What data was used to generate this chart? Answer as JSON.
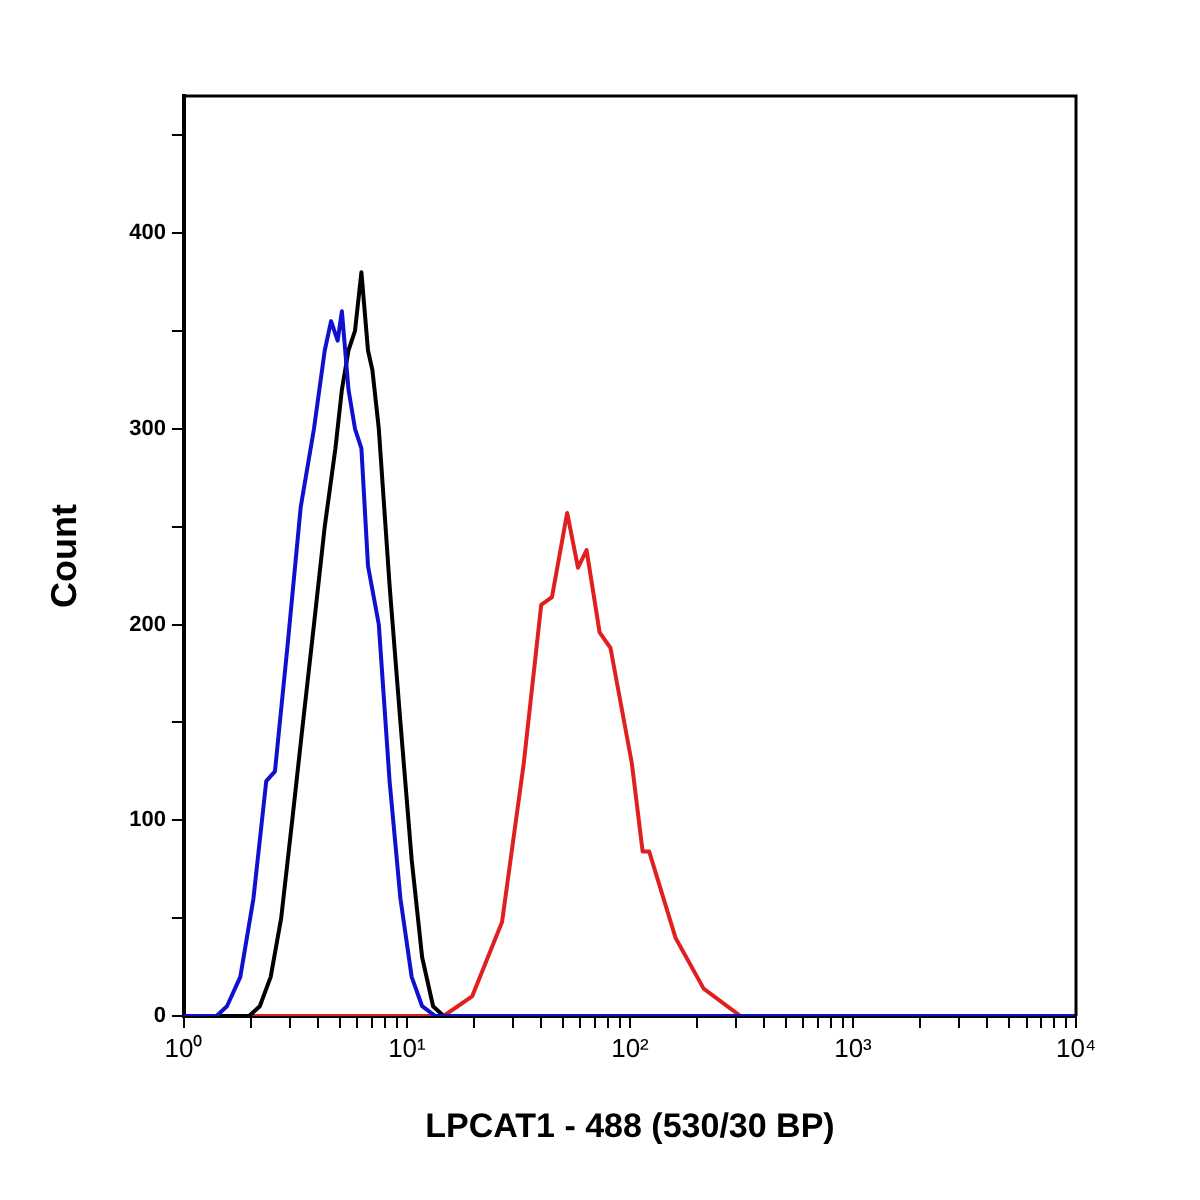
{
  "chart_data": {
    "type": "line",
    "xlabel": "LPCAT1 - 488 (530/30 BP)",
    "ylabel": "Count",
    "log": "x",
    "grid": false,
    "legend": false,
    "marker": "none",
    "line_style": "solid",
    "xlim": [
      1,
      10000
    ],
    "ylim": [
      0,
      470
    ],
    "xticks": [
      {
        "value": 1,
        "label": "10⁰"
      },
      {
        "value": 2,
        "label": null
      },
      {
        "value": 3,
        "label": null
      },
      {
        "value": 4,
        "label": null
      },
      {
        "value": 5,
        "label": null
      },
      {
        "value": 6,
        "label": null
      },
      {
        "value": 7,
        "label": null
      },
      {
        "value": 8,
        "label": null
      },
      {
        "value": 9,
        "label": null
      },
      {
        "value": 10,
        "label": "10¹"
      },
      {
        "value": 20,
        "label": null
      },
      {
        "value": 30,
        "label": null
      },
      {
        "value": 40,
        "label": null
      },
      {
        "value": 50,
        "label": null
      },
      {
        "value": 60,
        "label": null
      },
      {
        "value": 70,
        "label": null
      },
      {
        "value": 80,
        "label": null
      },
      {
        "value": 90,
        "label": null
      },
      {
        "value": 100,
        "label": "10²"
      },
      {
        "value": 200,
        "label": null
      },
      {
        "value": 300,
        "label": null
      },
      {
        "value": 400,
        "label": null
      },
      {
        "value": 500,
        "label": null
      },
      {
        "value": 600,
        "label": null
      },
      {
        "value": 700,
        "label": null
      },
      {
        "value": 800,
        "label": null
      },
      {
        "value": 900,
        "label": null
      },
      {
        "value": 1000,
        "label": "10³"
      },
      {
        "value": 2000,
        "label": null
      },
      {
        "value": 3000,
        "label": null
      },
      {
        "value": 4000,
        "label": null
      },
      {
        "value": 5000,
        "label": null
      },
      {
        "value": 6000,
        "label": null
      },
      {
        "value": 7000,
        "label": null
      },
      {
        "value": 8000,
        "label": null
      },
      {
        "value": 9000,
        "label": null
      },
      {
        "value": 10000,
        "label": "10⁴"
      }
    ],
    "yticks": [
      0,
      {
        "value": 50,
        "label": null
      },
      100,
      {
        "value": 150,
        "label": null
      },
      200,
      {
        "value": 250,
        "label": null
      },
      300,
      {
        "value": 350,
        "label": null
      },
      400,
      {
        "value": 450,
        "label": null
      }
    ],
    "series": [
      {
        "color": "#1010d0",
        "x": [
          1,
          1.4,
          1.56,
          1.79,
          2.05,
          2.34,
          2.56,
          2.92,
          3.34,
          3.83,
          4.28,
          4.57,
          4.89,
          5.11,
          5.47,
          5.85,
          6.25,
          6.69,
          7.48,
          8.36,
          9.35,
          10.5,
          11.7,
          13.4,
          10000
        ],
        "values": [
          0,
          0,
          5,
          20,
          60,
          120,
          125,
          190,
          260,
          300,
          340,
          355,
          345,
          360,
          320,
          300,
          290,
          230,
          200,
          120,
          60,
          20,
          5,
          0,
          0
        ]
      },
      {
        "color": "#000000",
        "x": [
          1,
          1.96,
          2.19,
          2.45,
          2.73,
          3.06,
          3.42,
          3.83,
          4.28,
          4.78,
          5.11,
          5.47,
          5.85,
          6.25,
          6.69,
          7.0,
          7.48,
          8.36,
          9.35,
          10.5,
          11.7,
          13.1,
          14.6,
          10000
        ],
        "values": [
          0,
          0,
          5,
          20,
          50,
          100,
          150,
          200,
          250,
          290,
          320,
          340,
          350,
          380,
          340,
          330,
          300,
          220,
          150,
          80,
          30,
          5,
          0,
          0
        ]
      },
      {
        "color": "#e02020",
        "x": [
          1,
          14.6,
          19.6,
          26.7,
          33.4,
          40.0,
          44.7,
          52.3,
          58.5,
          63.9,
          73.1,
          81.8,
          102,
          114,
          122,
          160,
          214,
          313,
          10000
        ],
        "values": [
          0,
          0,
          10,
          48,
          129,
          210,
          214,
          257,
          229,
          238,
          196,
          188,
          129,
          84,
          84,
          40,
          14,
          0,
          0
        ]
      }
    ]
  }
}
